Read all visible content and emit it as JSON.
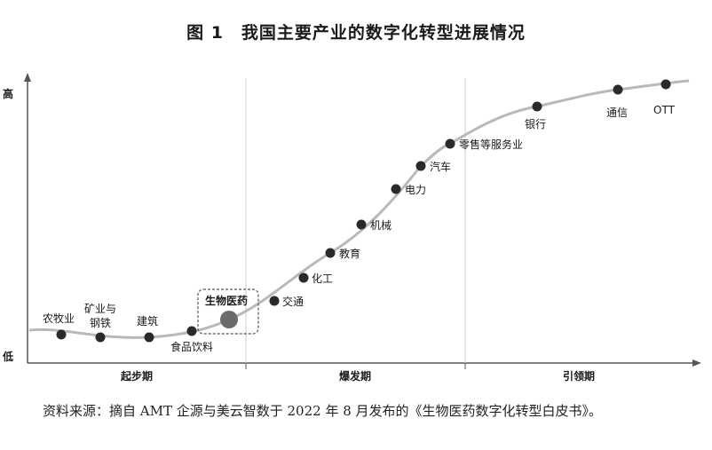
{
  "title": "图 1　我国主要产业的数字化转型进展情况",
  "source": "资料来源：摘自 AMT 企源与美云智数于 2022 年 8 月发布的《生物医药数字化转型白皮书》。",
  "axis": {
    "y_high": "高",
    "y_low": "低"
  },
  "phases": [
    "起步期",
    "爆发期",
    "引领期"
  ],
  "industries": [
    {
      "label": "农牧业"
    },
    {
      "label": "矿业与\n钢铁"
    },
    {
      "label": "建筑"
    },
    {
      "label": "食品饮料"
    },
    {
      "label": "生物医药",
      "highlight": true
    },
    {
      "label": "交通"
    },
    {
      "label": "化工"
    },
    {
      "label": "教育"
    },
    {
      "label": "机械"
    },
    {
      "label": "电力"
    },
    {
      "label": "汽车"
    },
    {
      "label": "零售等服务业"
    },
    {
      "label": "银行"
    },
    {
      "label": "通信"
    },
    {
      "label": "OTT"
    }
  ],
  "colors": {
    "curve": "#b9b9b9",
    "dot": "#2a2a2a",
    "highlight_dot": "#6b6b6b",
    "divider": "#cfcfcf",
    "axis": "#555555"
  }
}
